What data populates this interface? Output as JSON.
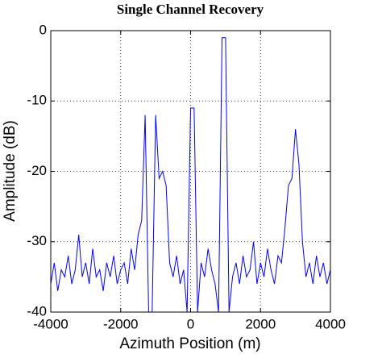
{
  "chart_data": {
    "type": "line",
    "title": "Single Channel Recovery",
    "x_label": "Azimuth Position (m)",
    "y_label": "Amplitude (dB)",
    "x": [
      -4000,
      -3900,
      -3800,
      -3700,
      -3600,
      -3500,
      -3400,
      -3300,
      -3200,
      -3100,
      -3000,
      -2900,
      -2800,
      -2700,
      -2600,
      -2500,
      -2400,
      -2300,
      -2200,
      -2100,
      -2000,
      -1900,
      -1800,
      -1700,
      -1600,
      -1500,
      -1400,
      -1300,
      -1200,
      -1100,
      -1000,
      -900,
      -800,
      -700,
      -600,
      -500,
      -400,
      -300,
      -200,
      -100,
      0,
      100,
      200,
      300,
      400,
      500,
      600,
      700,
      800,
      900,
      1000,
      1100,
      1200,
      1300,
      1400,
      1500,
      1600,
      1700,
      1800,
      1900,
      2000,
      2100,
      2200,
      2300,
      2400,
      2500,
      2600,
      2700,
      2800,
      2900,
      3000,
      3100,
      3200,
      3300,
      3400,
      3500,
      3600,
      3700,
      3800,
      3900,
      4000
    ],
    "series": [
      {
        "color": "#0000ff",
        "values": [
          -36,
          -33,
          -37,
          -34,
          -35,
          -32,
          -36,
          -34,
          -29,
          -35,
          -33,
          -36,
          -31,
          -35,
          -34,
          -37,
          -33,
          -35,
          -32,
          -36,
          -34,
          -33,
          -36,
          -31,
          -34,
          -29,
          -27,
          -12,
          -40,
          -40,
          -12,
          -21,
          -20,
          -22,
          -33,
          -35,
          -32,
          -36,
          -34,
          -40,
          -11,
          -11,
          -40,
          -33,
          -35,
          -31,
          -34,
          -36,
          -40,
          -1,
          -1,
          -40,
          -35,
          -33,
          -36,
          -32,
          -35,
          -34,
          -30,
          -36,
          -33,
          -35,
          -31,
          -34,
          -36,
          -32,
          -33,
          -28,
          -22,
          -21,
          -14,
          -19,
          -30,
          -35,
          -33,
          -36,
          -32,
          -35,
          -33,
          -36,
          -34
        ]
      }
    ],
    "xlim": [
      -4000,
      4000
    ],
    "ylim": [
      -40,
      0
    ],
    "xticks": [
      -4000,
      -2000,
      0,
      2000,
      4000
    ],
    "yticks": [
      -40,
      -30,
      -20,
      -10,
      0
    ],
    "grid": true
  }
}
